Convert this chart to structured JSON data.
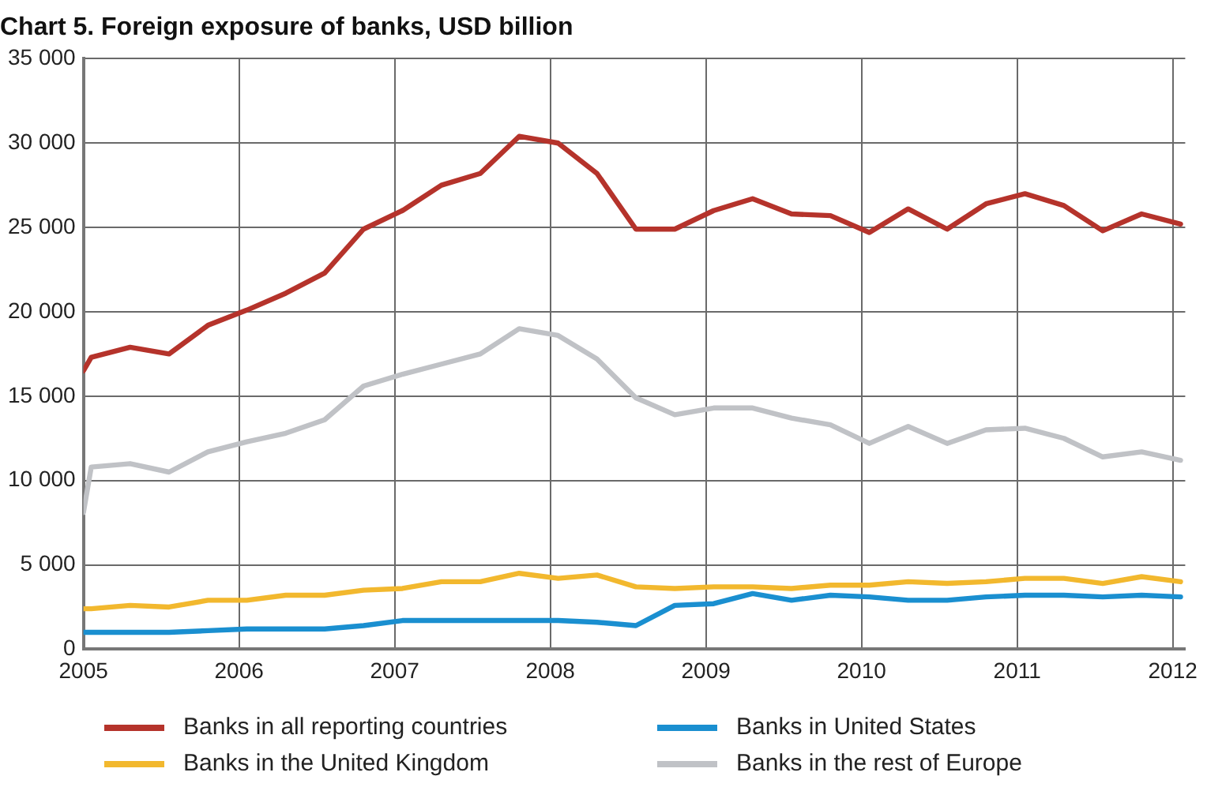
{
  "chart_data": {
    "type": "line",
    "title": "Chart 5. Foreign exposure of banks, USD billion",
    "x": [
      2005,
      2005.05,
      2005.3,
      2005.55,
      2005.8,
      2006.05,
      2006.3,
      2006.55,
      2006.8,
      2007.05,
      2007.3,
      2007.55,
      2007.8,
      2008.05,
      2008.3,
      2008.55,
      2008.8,
      2009.05,
      2009.3,
      2009.55,
      2009.8,
      2010.05,
      2010.3,
      2010.55,
      2010.8,
      2011.05,
      2011.3,
      2011.55,
      2011.8,
      2012.05
    ],
    "series": [
      {
        "name": "Banks in all reporting countries",
        "color": "#b5332b",
        "values": [
          16500,
          17300,
          17900,
          17500,
          19200,
          20100,
          21100,
          22300,
          24900,
          26000,
          27500,
          28200,
          30400,
          30000,
          28200,
          24900,
          24900,
          26000,
          26700,
          25800,
          25700,
          24700,
          26100,
          24900,
          26400,
          27000,
          26300,
          24800,
          25800,
          25200
        ]
      },
      {
        "name": "Banks in United States",
        "color": "#1a8fd0",
        "values": [
          1000,
          1000,
          1000,
          1000,
          1100,
          1200,
          1200,
          1200,
          1400,
          1700,
          1700,
          1700,
          1700,
          1700,
          1600,
          1400,
          2600,
          2700,
          3300,
          2900,
          3200,
          3100,
          2900,
          2900,
          3100,
          3200,
          3200,
          3100,
          3200,
          3100
        ]
      },
      {
        "name": "Banks in the United Kingdom",
        "color": "#f2b82e",
        "values": [
          2400,
          2400,
          2600,
          2500,
          2900,
          2900,
          3200,
          3200,
          3500,
          3600,
          4000,
          4000,
          4500,
          4200,
          4400,
          3700,
          3600,
          3700,
          3700,
          3600,
          3800,
          3800,
          4000,
          3900,
          4000,
          4200,
          4200,
          3900,
          4300,
          4000
        ]
      },
      {
        "name": "Banks in the rest of Europe",
        "color": "#c0c2c6",
        "values": [
          8100,
          10800,
          11000,
          10500,
          11700,
          12300,
          12800,
          13600,
          15600,
          16300,
          16900,
          17500,
          19000,
          18600,
          17200,
          14900,
          13900,
          14300,
          14300,
          13700,
          13300,
          12200,
          13200,
          12200,
          13000,
          13100,
          12500,
          11400,
          11700,
          11200
        ]
      }
    ],
    "xlim": [
      2005,
      2012.08
    ],
    "xticks": [
      2005,
      2006,
      2007,
      2008,
      2009,
      2010,
      2011,
      2012
    ],
    "ylim": [
      0,
      35000
    ],
    "yticks": [
      0,
      {
        "value": 5000,
        "label": "5 000"
      },
      {
        "value": 10000,
        "label": "10 000"
      },
      {
        "value": 15000,
        "label": "15 000"
      },
      {
        "value": 20000,
        "label": "20 000"
      },
      {
        "value": 25000,
        "label": "25 000"
      },
      {
        "value": 30000,
        "label": "30 000"
      },
      {
        "value": 35000,
        "label": "35 000"
      }
    ],
    "grid": true,
    "legend": "bottom",
    "marker": "none",
    "line_style": "solid"
  }
}
